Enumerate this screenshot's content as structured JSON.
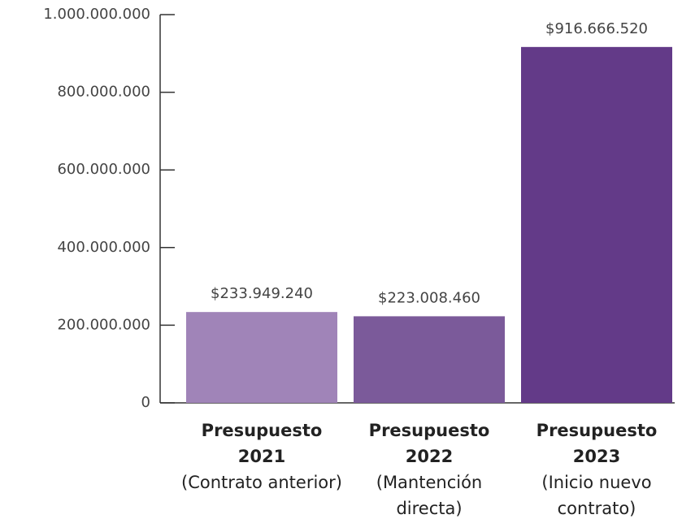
{
  "chart_data": {
    "type": "bar",
    "categories": [
      "Presupuesto 2021",
      "Presupuesto 2022",
      "Presupuesto 2023"
    ],
    "category_notes": [
      "(Contrato anterior)",
      "(Mantención directa)",
      "(Inicio nuevo contrato)"
    ],
    "values": [
      233949240,
      223008460,
      916666520
    ],
    "value_labels": [
      "$233.949.240",
      "$223.008.460",
      "$916.666.520"
    ],
    "colors": [
      "#a084b8",
      "#7b5a9a",
      "#633a88"
    ],
    "ylim": [
      0,
      1000000000
    ],
    "yticks": [
      0,
      {
        "value": 200000000,
        "label": "200.000.000"
      },
      {
        "value": 400000000,
        "label": "400.000.000"
      },
      {
        "value": 600000000,
        "label": "600.000.000"
      },
      {
        "value": 800000000,
        "label": "800.000.000"
      },
      {
        "value": 1000000000,
        "label": "1.000.000.000"
      }
    ],
    "grid": false
  }
}
